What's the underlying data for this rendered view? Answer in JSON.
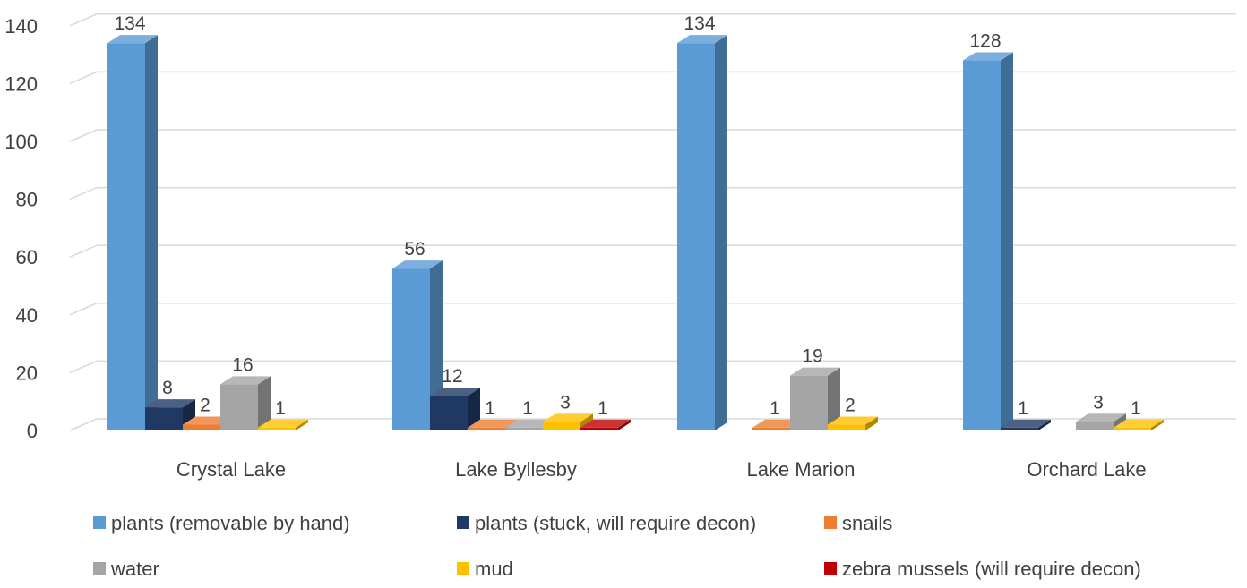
{
  "chart_data": {
    "type": "bar",
    "title": "",
    "xlabel": "",
    "ylabel": "",
    "ylim": [
      0,
      140
    ],
    "yticks": [
      0,
      20,
      40,
      60,
      80,
      100,
      120,
      140
    ],
    "grid": true,
    "legend_position": "bottom",
    "categories": [
      "Crystal Lake",
      "Lake Byllesby",
      "Lake Marion",
      "Orchard Lake"
    ],
    "series": [
      {
        "name": "plants (removable by hand)",
        "color": "#5B9BD5",
        "values": [
          134,
          56,
          134,
          128
        ]
      },
      {
        "name": "plants (stuck, will require decon)",
        "color": "#1F3864",
        "values": [
          8,
          12,
          null,
          1
        ]
      },
      {
        "name": "snails",
        "color": "#ED7D31",
        "values": [
          2,
          1,
          1,
          null
        ]
      },
      {
        "name": "water",
        "color": "#A5A5A5",
        "values": [
          16,
          1,
          19,
          3
        ]
      },
      {
        "name": "mud",
        "color": "#FFC000",
        "values": [
          1,
          3,
          2,
          1
        ]
      },
      {
        "name": "zebra mussels (will require decon)",
        "color": "#C00000",
        "values": [
          null,
          1,
          null,
          null
        ]
      }
    ]
  }
}
